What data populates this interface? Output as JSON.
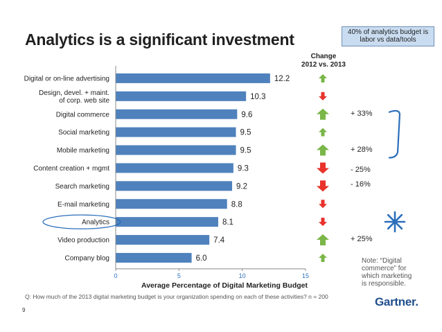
{
  "title": "Analytics is a significant investment",
  "note_box": "40% of analytics budget is labor vs data/tools",
  "change_header": {
    "line1": "Change",
    "line2": "2012 vs. 2013"
  },
  "side_note": "Note:  “Digital commerce” for which marketing is responsible.",
  "question": "Q: How much of the 2013 digital marketing budget is your organization spending on each of these activities?  n = 200",
  "page_number": "9",
  "logo": "Gartner.",
  "colors": {
    "bar": "#4f81bd",
    "up_arrow": "#7ab648",
    "down_arrow": "#e8322b",
    "annotation": "#2a6ebb"
  },
  "chart_data": {
    "type": "bar",
    "orientation": "horizontal",
    "categories": [
      "Digital or on-line advertising",
      "Design, devel. + maint. of corp. web site",
      "Digital commerce",
      "Social marketing",
      "Mobile marketing",
      "Content creation + mgmt",
      "Search marketing",
      "E-mail marketing",
      "Analytics",
      "Video production",
      "Company blog"
    ],
    "category_lines": [
      [
        "Digital or on-line advertising"
      ],
      [
        "Design, devel. + maint.",
        "of corp. web site"
      ],
      [
        "Digital commerce"
      ],
      [
        "Social marketing"
      ],
      [
        "Mobile marketing"
      ],
      [
        "Content creation + mgmt"
      ],
      [
        "Search marketing"
      ],
      [
        "E-mail marketing"
      ],
      [
        "Analytics"
      ],
      [
        "Video production"
      ],
      [
        "Company blog"
      ]
    ],
    "values": [
      12.2,
      10.3,
      9.6,
      9.5,
      9.5,
      9.3,
      9.2,
      8.8,
      8.1,
      7.4,
      6.0
    ],
    "value_labels": [
      "12.2",
      "10.3",
      "9.6",
      "9.5",
      "9.5",
      "9.3",
      "9.2",
      "8.8",
      "8.1",
      "7.4",
      "6.0"
    ],
    "change_direction": [
      "up",
      "down",
      "up",
      "up",
      "up",
      "down",
      "down",
      "down",
      "down",
      "up",
      "up"
    ],
    "change_size": [
      "small",
      "small",
      "large",
      "small",
      "large",
      "large",
      "large",
      "small",
      "small",
      "large",
      "small"
    ],
    "change_labels": [
      "",
      "",
      "+ 33%",
      "",
      "+ 28%",
      "- 25%",
      "- 16%",
      "",
      "",
      "+ 25%",
      ""
    ],
    "xlabel": "Average Percentage of Digital Marketing Budget",
    "xlim": [
      0,
      15
    ],
    "xticks": [
      0,
      5,
      10,
      15
    ],
    "xtick_labels": [
      "0",
      "5",
      "10",
      "15"
    ],
    "grid": false,
    "highlighted_category": "Analytics"
  }
}
